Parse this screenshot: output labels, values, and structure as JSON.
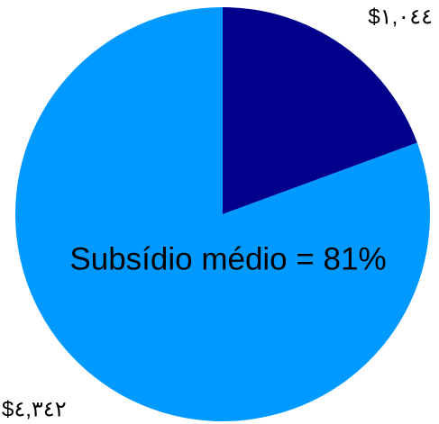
{
  "chart_data": {
    "type": "pie",
    "categories": [
      null,
      null
    ],
    "values": [
      1044,
      4342
    ],
    "value_labels": [
      "$١,٠٤٤",
      "$٤,٣٤٢"
    ],
    "colors": [
      "#00008b",
      "#0099ff"
    ],
    "annotation": "Subsídio médio = 81%"
  }
}
